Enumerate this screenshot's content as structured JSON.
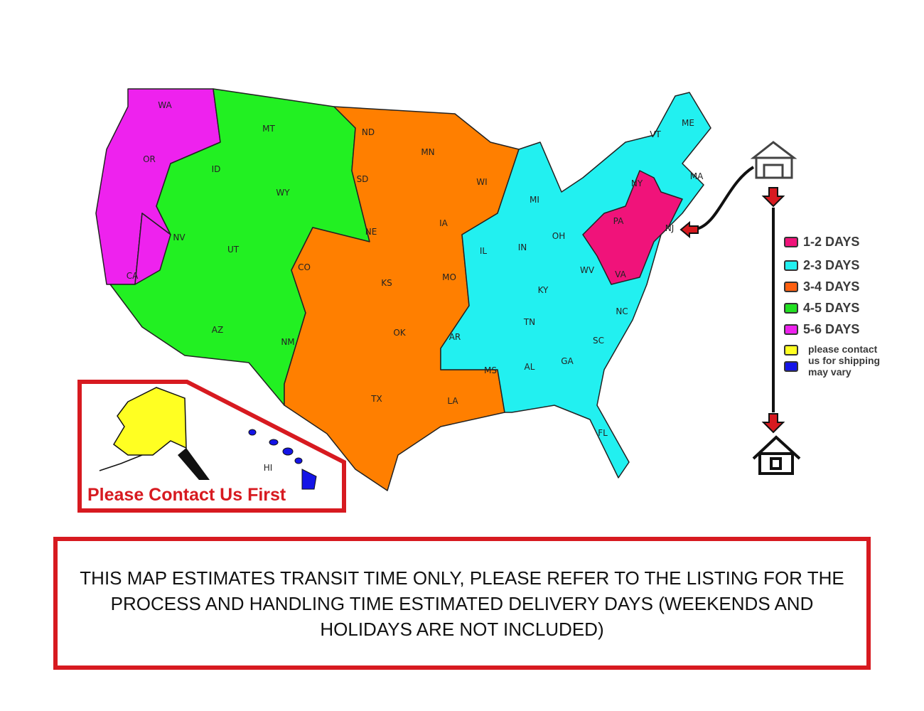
{
  "colors": {
    "days_1_2": "#f0137a",
    "days_2_3": "#22f0f0",
    "days_3_4": "#ff7f00",
    "days_4_5": "#22f022",
    "days_5_6": "#ee22ee",
    "contact": "#ffff22",
    "may_vary": "#1414e6",
    "accent_red": "#d71a20"
  },
  "states": [
    "WA",
    "OR",
    "CA",
    "ID",
    "NV",
    "MT",
    "WY",
    "UT",
    "AZ",
    "CO",
    "NM",
    "ND",
    "SD",
    "NE",
    "KS",
    "OK",
    "TX",
    "MN",
    "IA",
    "MO",
    "AR",
    "LA",
    "WI",
    "IL",
    "MI",
    "IN",
    "OH",
    "KY",
    "TN",
    "MS",
    "AL",
    "GA",
    "FL",
    "SC",
    "NC",
    "WV",
    "VA",
    "PA",
    "NY",
    "VT",
    "ME",
    "MA",
    "NJ",
    "AK",
    "HI"
  ],
  "legend": [
    {
      "label": "1-2 DAYS",
      "color": "#f0137a"
    },
    {
      "label": "2-3 DAYS",
      "color": "#22f0f0"
    },
    {
      "label": "3-4 DAYS",
      "color": "#ff6010"
    },
    {
      "label": "4-5 DAYS",
      "color": "#22e022"
    },
    {
      "label": "5-6 DAYS",
      "color": "#ee22ee"
    },
    {
      "label": "please contact",
      "color": "#ffff22"
    },
    {
      "label": "us for shipping",
      "color": "#1414e6"
    },
    {
      "label": "may vary",
      "color": ""
    }
  ],
  "icons": {
    "origin": "warehouse-icon",
    "destination": "house-icon",
    "arrow": "arrow-down-icon"
  },
  "inset_label": "Please Contact Us First",
  "notice": "THIS MAP ESTIMATES TRANSIT TIME ONLY, PLEASE REFER TO THE LISTING FOR THE PROCESS AND HANDLING TIME ESTIMATED DELIVERY DAYS (WEEKENDS AND HOLIDAYS ARE NOT INCLUDED)"
}
